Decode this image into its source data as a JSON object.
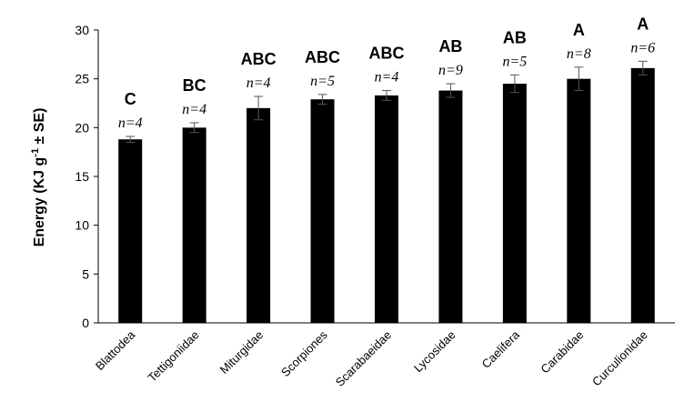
{
  "chart_data": {
    "type": "bar",
    "title": "",
    "xlabel": "",
    "ylabel": {
      "prefix": "Energy (KJ g",
      "superscript": "-1",
      "suffix": " ± SE)"
    },
    "ylim": [
      0,
      30
    ],
    "yticks": [
      0,
      5,
      10,
      15,
      20,
      25,
      30
    ],
    "grid": false,
    "legend": "none",
    "bar_color": "#000000",
    "categories": [
      "Blattodea",
      "Tettigoniidae",
      "Miturgidae",
      "Scorpiones",
      "Scarabaeidae",
      "Lycosidae",
      "Caelifera",
      "Carabidae",
      "Curculionidae"
    ],
    "values": [
      18.8,
      20.0,
      22.0,
      22.9,
      23.3,
      23.8,
      24.5,
      25.0,
      26.1
    ],
    "errors": [
      0.3,
      0.5,
      1.2,
      0.5,
      0.5,
      0.7,
      0.9,
      1.2,
      0.7
    ],
    "group_labels": [
      "C",
      "BC",
      "ABC",
      "ABC",
      "ABC",
      "AB",
      "AB",
      "A",
      "A"
    ],
    "n_labels": [
      "n=4",
      "n=4",
      "n=4",
      "n=5",
      "n=4",
      "n=9",
      "n=5",
      "n=8",
      "n=6"
    ]
  }
}
